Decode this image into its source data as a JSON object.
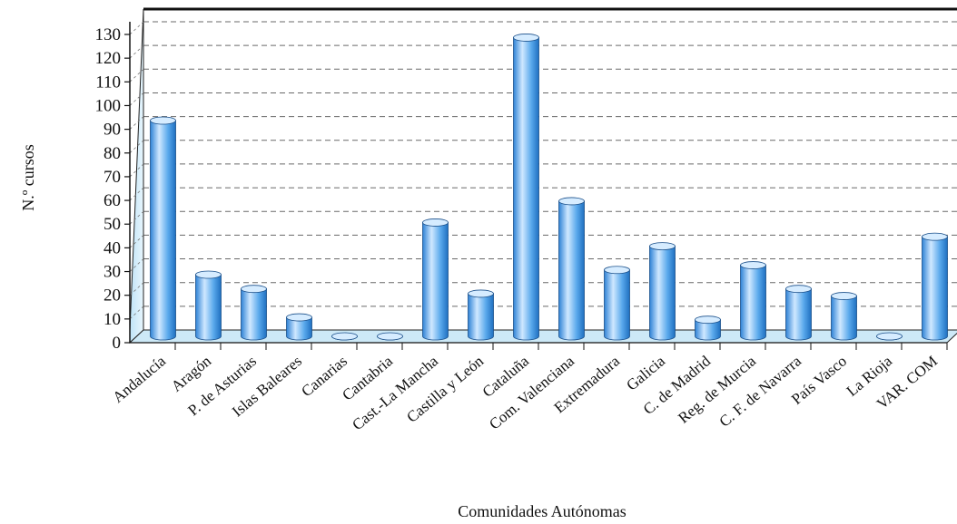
{
  "chart_data": {
    "type": "bar",
    "xlabel": "Comunidades Autónomas",
    "ylabel": "N.º cursos",
    "ylim": [
      0,
      130
    ],
    "y_ticks": [
      0,
      10,
      20,
      30,
      40,
      50,
      60,
      70,
      80,
      90,
      100,
      110,
      120,
      130
    ],
    "grid": true,
    "categories": [
      "Andalucía",
      "Aragón",
      "P. de Asturias",
      "Islas Baleares",
      "Canarias",
      "Cantabria",
      "Cast.-La Mancha",
      "Castilla y León",
      "Cataluña",
      "Com. Valenciana",
      "Extremadura",
      "Galicia",
      "C. de Madrid",
      "Reg. de Murcia",
      "C. F. de Navarra",
      "País Vasco",
      "La Rioja",
      "VAR. COM"
    ],
    "values": [
      91,
      26,
      20,
      8,
      0,
      0,
      48,
      18,
      126,
      57,
      28,
      38,
      7,
      30,
      20,
      17,
      0,
      42
    ],
    "colors": {
      "bar": "#5aa9ec",
      "bar_light": "#d6ecff",
      "bar_dark": "#1f6fc0",
      "wall": "#dff1fb",
      "grid": "#2b2b2b"
    }
  }
}
